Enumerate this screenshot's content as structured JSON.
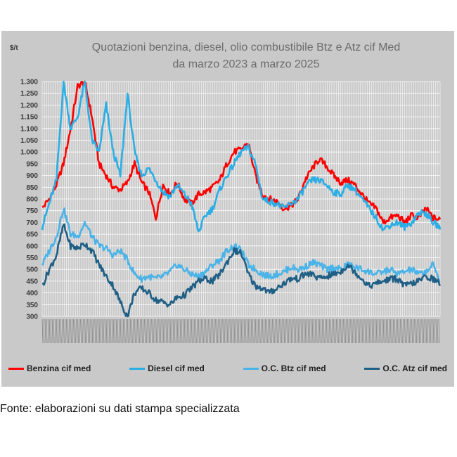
{
  "chart_data": {
    "type": "line",
    "title": [
      "Quotazioni benzina, diesel, olio combustibile Btz e Atz cif Med",
      "da marzo 2023 a marzo 2025"
    ],
    "unit": "$/t",
    "ylim": [
      300,
      1300
    ],
    "yticks": [
      "300",
      "350",
      "400",
      "450",
      "500",
      "550",
      "600",
      "650",
      "700",
      "750",
      "800",
      "850",
      "900",
      "950",
      "1.000",
      "1.050",
      "1.100",
      "1.150",
      "1.200",
      "1.250",
      "1.300"
    ],
    "ytick_values": [
      300,
      350,
      400,
      450,
      500,
      550,
      600,
      650,
      700,
      750,
      800,
      850,
      900,
      950,
      1000,
      1050,
      1100,
      1150,
      1200,
      1250,
      1300
    ],
    "x_range": [
      "2023-03",
      "2025-03"
    ],
    "grid": true,
    "legend_position": "bottom",
    "series": [
      {
        "name": "Benzina cif med",
        "color": "#ff0000",
        "values": [
          760,
          800,
          860,
          950,
          1100,
          1280,
          1300,
          1150,
          950,
          900,
          850,
          840,
          870,
          950,
          870,
          830,
          720,
          860,
          820,
          870,
          800,
          780,
          820,
          830,
          850,
          880,
          950,
          1000,
          1010,
          1040,
          900,
          820,
          800,
          790,
          760,
          770,
          800,
          880,
          930,
          970,
          940,
          900,
          870,
          880,
          860,
          820,
          780,
          760,
          700,
          720,
          730,
          700,
          730,
          720,
          760,
          720,
          710
        ]
      },
      {
        "name": "Diesel cif med",
        "color": "#29aee6",
        "values": [
          680,
          780,
          880,
          1300,
          1100,
          1150,
          1300,
          1050,
          1000,
          1200,
          1000,
          900,
          1250,
          1000,
          900,
          930,
          880,
          830,
          810,
          860,
          820,
          780,
          660,
          730,
          760,
          840,
          900,
          950,
          1000,
          1020,
          950,
          800,
          790,
          780,
          760,
          780,
          800,
          850,
          880,
          880,
          860,
          830,
          820,
          860,
          840,
          800,
          760,
          720,
          670,
          690,
          700,
          680,
          700,
          740,
          740,
          700,
          680
        ]
      },
      {
        "name": "O.C. Btz cif med",
        "color": "#4ab3e8",
        "values": [
          520,
          580,
          640,
          760,
          650,
          640,
          700,
          640,
          600,
          590,
          560,
          580,
          540,
          480,
          460,
          470,
          460,
          470,
          490,
          520,
          500,
          480,
          470,
          490,
          520,
          540,
          580,
          600,
          580,
          520,
          500,
          480,
          470,
          480,
          490,
          510,
          500,
          510,
          530,
          520,
          500,
          510,
          500,
          520,
          510,
          500,
          490,
          480,
          490,
          500,
          480,
          490,
          500,
          480,
          490,
          520,
          450
        ]
      },
      {
        "name": "O.C. Atz cif med",
        "color": "#1f5f86",
        "values": [
          430,
          500,
          560,
          690,
          600,
          590,
          610,
          580,
          520,
          470,
          430,
          360,
          300,
          400,
          420,
          400,
          370,
          360,
          350,
          380,
          390,
          420,
          450,
          460,
          450,
          480,
          530,
          580,
          570,
          480,
          430,
          420,
          400,
          420,
          440,
          460,
          460,
          480,
          480,
          460,
          470,
          480,
          490,
          520,
          490,
          460,
          430,
          440,
          450,
          460,
          460,
          430,
          440,
          450,
          470,
          460,
          440
        ]
      }
    ]
  },
  "source_note": "Fonte: elaborazioni su dati stampa specializzata"
}
